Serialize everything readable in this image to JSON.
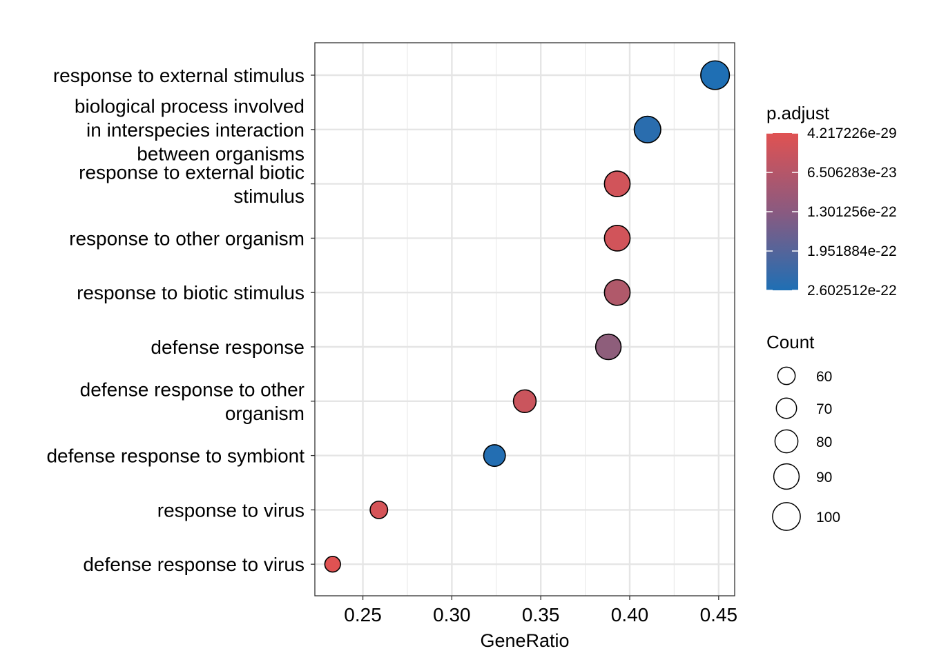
{
  "chart_data": {
    "type": "scatter",
    "xlabel": "GeneRatio",
    "ylabel": "",
    "xlim": [
      0.223,
      0.459
    ],
    "x_ticks": [
      "0.25",
      "0.30",
      "0.35",
      "0.40",
      "0.45"
    ],
    "x_tick_values": [
      0.25,
      0.3,
      0.35,
      0.4,
      0.45
    ],
    "grid": true,
    "legend_position": "right",
    "categories": [
      [
        "response to external stimulus"
      ],
      [
        "biological process involved",
        "in interspecies interaction",
        "between organisms"
      ],
      [
        "response to external biotic",
        "stimulus"
      ],
      [
        "response to other organism"
      ],
      [
        "response to biotic stimulus"
      ],
      [
        "defense response"
      ],
      [
        "defense response to other",
        "organism"
      ],
      [
        "defense response to symbiont"
      ],
      [
        "response to virus"
      ],
      [
        "defense response to virus"
      ]
    ],
    "points": [
      {
        "x": 0.448,
        "count": 104,
        "p_adjust": 2.6e-22
      },
      {
        "x": 0.41,
        "count": 95,
        "p_adjust": 2.45e-22
      },
      {
        "x": 0.393,
        "count": 91,
        "p_adjust": 2e-23
      },
      {
        "x": 0.393,
        "count": 91,
        "p_adjust": 2e-23
      },
      {
        "x": 0.393,
        "count": 91,
        "p_adjust": 6.5e-23
      },
      {
        "x": 0.388,
        "count": 90,
        "p_adjust": 1.1e-22
      },
      {
        "x": 0.341,
        "count": 79,
        "p_adjust": 3e-23
      },
      {
        "x": 0.324,
        "count": 75,
        "p_adjust": 2.55e-22
      },
      {
        "x": 0.259,
        "count": 60,
        "p_adjust": 1.5e-23
      },
      {
        "x": 0.233,
        "count": 54,
        "p_adjust": 4.2e-29
      }
    ],
    "color_legend": {
      "title": "p.adjust",
      "low_color": "#e05252",
      "high_color": "#1f6fb4",
      "min": 4.217226e-29,
      "max": 2.602512e-22,
      "ticks": [
        "4.217226e-29",
        "6.506283e-23",
        "1.301256e-22",
        "1.951884e-22",
        "2.602512e-22"
      ],
      "tick_values": [
        4.217226e-29,
        6.506283e-23,
        1.301256e-22,
        1.951884e-22,
        2.602512e-22
      ]
    },
    "size_legend": {
      "title": "Count",
      "labels": [
        "60",
        "70",
        "80",
        "90",
        "100"
      ],
      "values": [
        60,
        70,
        80,
        90,
        100
      ]
    }
  }
}
